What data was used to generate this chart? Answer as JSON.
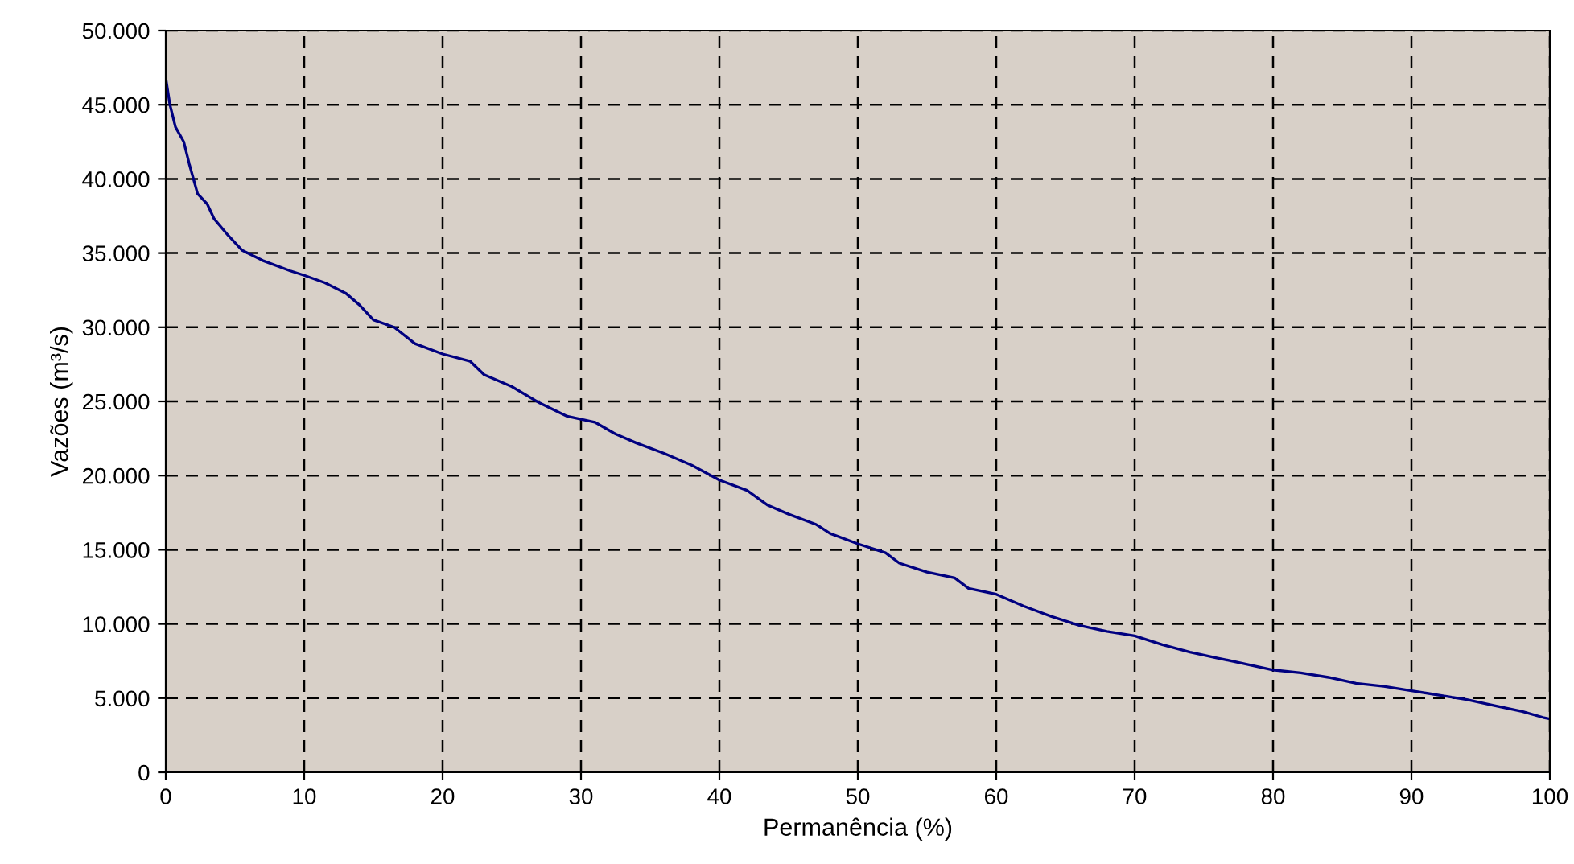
{
  "chart_data": {
    "type": "line",
    "xlabel": "Permanência (%)",
    "ylabel": "Vazões (m³/s)",
    "x": [
      0,
      0.3,
      0.7,
      1.3,
      1.7,
      2.3,
      3,
      3.5,
      4.5,
      5.5,
      7,
      9,
      10,
      11.5,
      13,
      14,
      15,
      16.5,
      18,
      20,
      22,
      23,
      25,
      27,
      29,
      31,
      32.5,
      34,
      36,
      38,
      40,
      42,
      43.5,
      45,
      47,
      48,
      50,
      52,
      53,
      55,
      57,
      58,
      60,
      62,
      64,
      66,
      68,
      70,
      72,
      74,
      76,
      78,
      80,
      82,
      84,
      86,
      88,
      90,
      92,
      94,
      96,
      98,
      99.5,
      100
    ],
    "series": [
      {
        "color": "#000080",
        "values": [
          46800,
          45000,
          43500,
          42500,
          41000,
          39000,
          38300,
          37300,
          36200,
          35200,
          34500,
          33800,
          33500,
          33000,
          32300,
          31500,
          30500,
          30000,
          28900,
          28200,
          27700,
          26800,
          26000,
          24900,
          24000,
          23600,
          22800,
          22200,
          21500,
          20700,
          19700,
          19000,
          18000,
          17400,
          16700,
          16100,
          15400,
          14800,
          14100,
          13500,
          13100,
          12400,
          12000,
          11200,
          10500,
          9900,
          9500,
          9200,
          8600,
          8100,
          7700,
          7300,
          6900,
          6700,
          6400,
          6000,
          5800,
          5500,
          5200,
          4900,
          4500,
          4100,
          3700,
          3600
        ]
      }
    ],
    "xlim": [
      0,
      100
    ],
    "xticks": [
      0,
      10,
      20,
      30,
      40,
      50,
      60,
      70,
      80,
      90,
      100
    ],
    "ylim": [
      0,
      50000
    ],
    "yticks": [
      0,
      {
        "value": 5000,
        "label": "5.000"
      },
      {
        "value": 10000,
        "label": "10.000"
      },
      {
        "value": 15000,
        "label": "15.000"
      },
      {
        "value": 20000,
        "label": "20.000"
      },
      {
        "value": 25000,
        "label": "25.000"
      },
      {
        "value": 30000,
        "label": "30.000"
      },
      {
        "value": 35000,
        "label": "35.000"
      },
      {
        "value": 40000,
        "label": "40.000"
      },
      {
        "value": 45000,
        "label": "45.000"
      },
      {
        "value": 50000,
        "label": "50.000"
      }
    ],
    "grid": true,
    "line_style": "solid",
    "marker": "none"
  }
}
